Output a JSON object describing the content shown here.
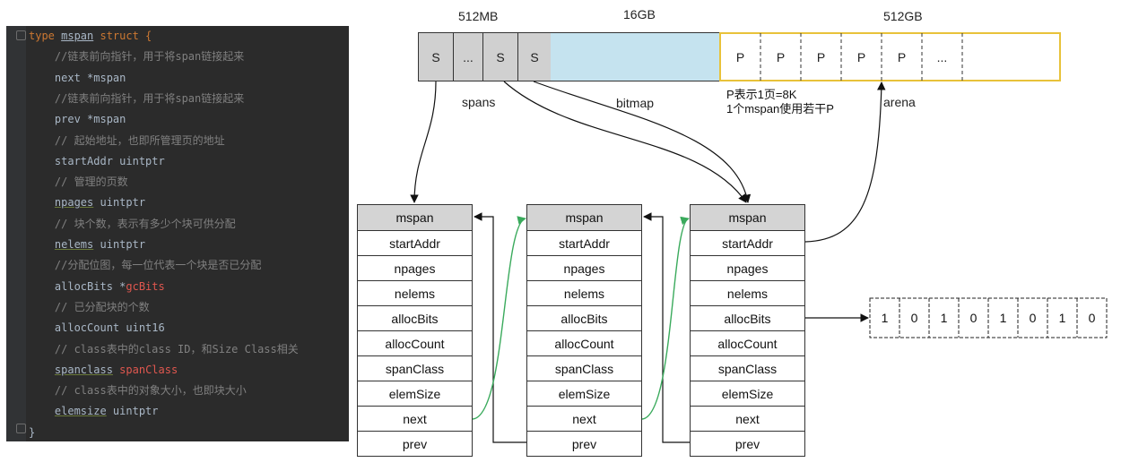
{
  "code": {
    "lines": [
      [
        {
          "t": "type ",
          "c": "kw"
        },
        {
          "t": "mspan",
          "c": "tn"
        },
        {
          "t": " struct {",
          "c": "kw"
        }
      ],
      [
        {
          "t": "    //链表前向指针，用于将span链接起来",
          "c": "cm"
        }
      ],
      [
        {
          "t": "    next *mspan",
          "c": "plain"
        }
      ],
      [
        {
          "t": "    //链表前向指针，用于将span链接起来",
          "c": "cm"
        }
      ],
      [
        {
          "t": "    prev *mspan",
          "c": "plain"
        }
      ],
      [
        {
          "t": "    // 起始地址，也即所管理页的地址",
          "c": "cm"
        }
      ],
      [
        {
          "t": "    startAddr uintptr",
          "c": "plain"
        }
      ],
      [
        {
          "t": "    // 管理的页数",
          "c": "cm"
        }
      ],
      [
        {
          "t": "    ",
          "c": "plain"
        },
        {
          "t": "npages",
          "c": "plain ul"
        },
        {
          "t": " uintptr",
          "c": "plain"
        }
      ],
      [
        {
          "t": "    // 块个数，表示有多少个块可供分配",
          "c": "cm"
        }
      ],
      [
        {
          "t": "    ",
          "c": "plain"
        },
        {
          "t": "nelems",
          "c": "plain ul"
        },
        {
          "t": " uintptr",
          "c": "plain"
        }
      ],
      [
        {
          "t": "    //分配位图，每一位代表一个块是否已分配",
          "c": "cm"
        }
      ],
      [
        {
          "t": "    allocBits *",
          "c": "plain"
        },
        {
          "t": "gcBits",
          "c": "red"
        }
      ],
      [
        {
          "t": "    // 已分配块的个数",
          "c": "cm"
        }
      ],
      [
        {
          "t": "    allocCount uint16",
          "c": "plain"
        }
      ],
      [
        {
          "t": "    // class表中的class ID，和Size Class相关",
          "c": "cm"
        }
      ],
      [
        {
          "t": "    ",
          "c": "plain"
        },
        {
          "t": "spanclass",
          "c": "plain ul"
        },
        {
          "t": " ",
          "c": "plain"
        },
        {
          "t": "spanClass",
          "c": "red"
        }
      ],
      [
        {
          "t": "    // class表中的对象大小，也即块大小",
          "c": "cm"
        }
      ],
      [
        {
          "t": "    ",
          "c": "plain"
        },
        {
          "t": "elemsize",
          "c": "plain ul"
        },
        {
          "t": " uintptr",
          "c": "plain"
        }
      ],
      [
        {
          "t": "}",
          "c": "plain"
        }
      ]
    ]
  },
  "memory": {
    "size_labels": [
      "512MB",
      "16GB",
      "512GB"
    ],
    "span_cells": [
      "S",
      "...",
      "S",
      "S"
    ],
    "arena_cells": [
      "P",
      "P",
      "P",
      "P",
      "P",
      "..."
    ],
    "region_labels": {
      "spans": "spans",
      "bitmap": "bitmap",
      "arena": "arena"
    },
    "note_lines": [
      "P表示1页=8K",
      "1个mspan使用若干P"
    ],
    "colors": {
      "spans": "#d0d0d0",
      "bitmap": "#c5e3ef",
      "arena_border": "#e8c23a",
      "link_arrow": "#3aaa5c"
    }
  },
  "mspan_fields": [
    "mspan",
    "startAddr",
    "npages",
    "nelems",
    "allocBits",
    "allocCount",
    "spanClass",
    "elemSize",
    "next",
    "prev"
  ],
  "tables": [
    {
      "fields": [
        "mspan",
        "startAddr",
        "npages",
        "nelems",
        "allocBits",
        "allocCount",
        "spanClass",
        "elemSize",
        "next",
        "prev"
      ]
    },
    {
      "fields": [
        "mspan",
        "startAddr",
        "npages",
        "nelems",
        "allocBits",
        "allocCount",
        "spanClass",
        "elemSize",
        "next",
        "prev"
      ]
    },
    {
      "fields": [
        "mspan",
        "startAddr",
        "npages",
        "nelems",
        "allocBits",
        "allocCount",
        "spanClass",
        "elemSize",
        "next",
        "prev"
      ]
    }
  ],
  "alloc_bits": [
    "1",
    "0",
    "1",
    "0",
    "1",
    "0",
    "1",
    "0"
  ]
}
